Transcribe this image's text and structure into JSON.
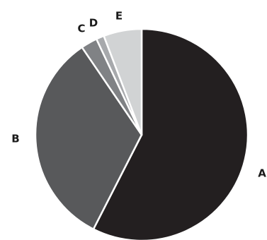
{
  "chart_data": {
    "type": "pie",
    "title": "",
    "start_angle_deg": 0,
    "direction": "clockwise",
    "slices": [
      {
        "label": "A",
        "value": 57.5,
        "color": "#231f20"
      },
      {
        "label": "B",
        "value": 33.0,
        "color": "#58595b"
      },
      {
        "label": "C",
        "value": 2.5,
        "color": "#808285"
      },
      {
        "label": "D",
        "value": 1.2,
        "color": "#a7a9ac"
      },
      {
        "label": "E",
        "value": 5.8,
        "color": "#d1d3d4"
      }
    ],
    "legend": "none"
  }
}
